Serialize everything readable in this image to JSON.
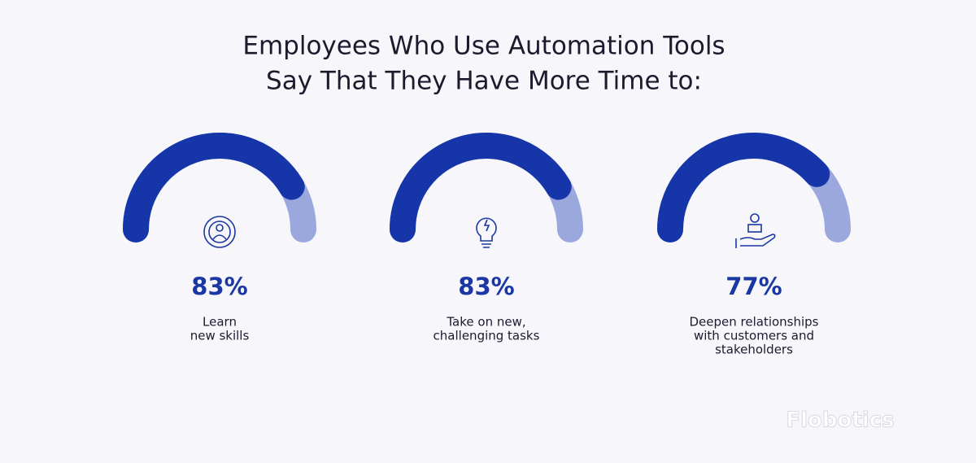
{
  "title_lines": [
    "Employees Who Use Automation Tools",
    "Say That They Have More Time to:"
  ],
  "brand": "Flobotics",
  "chart_data": [
    {
      "type": "gauge",
      "values": [
        83
      ],
      "value_labels": [
        "83%"
      ],
      "label_lines": [
        "Learn",
        "new skills"
      ],
      "ylim": [
        0,
        100
      ],
      "color": "#1535a8",
      "track_color": "#9ba8dd"
    },
    {
      "type": "gauge",
      "values": [
        83
      ],
      "value_labels": [
        "83%"
      ],
      "label_lines": [
        "Take on new,",
        "challenging tasks"
      ],
      "ylim": [
        0,
        100
      ],
      "color": "#1535a8",
      "track_color": "#9ba8dd"
    },
    {
      "type": "gauge",
      "values": [
        77
      ],
      "value_labels": [
        "77%"
      ],
      "label_lines": [
        "Deepen relationships",
        "with customers and",
        "stakeholders"
      ],
      "ylim": [
        0,
        100
      ],
      "color": "#1535a8",
      "track_color": "#9ba8dd"
    }
  ]
}
